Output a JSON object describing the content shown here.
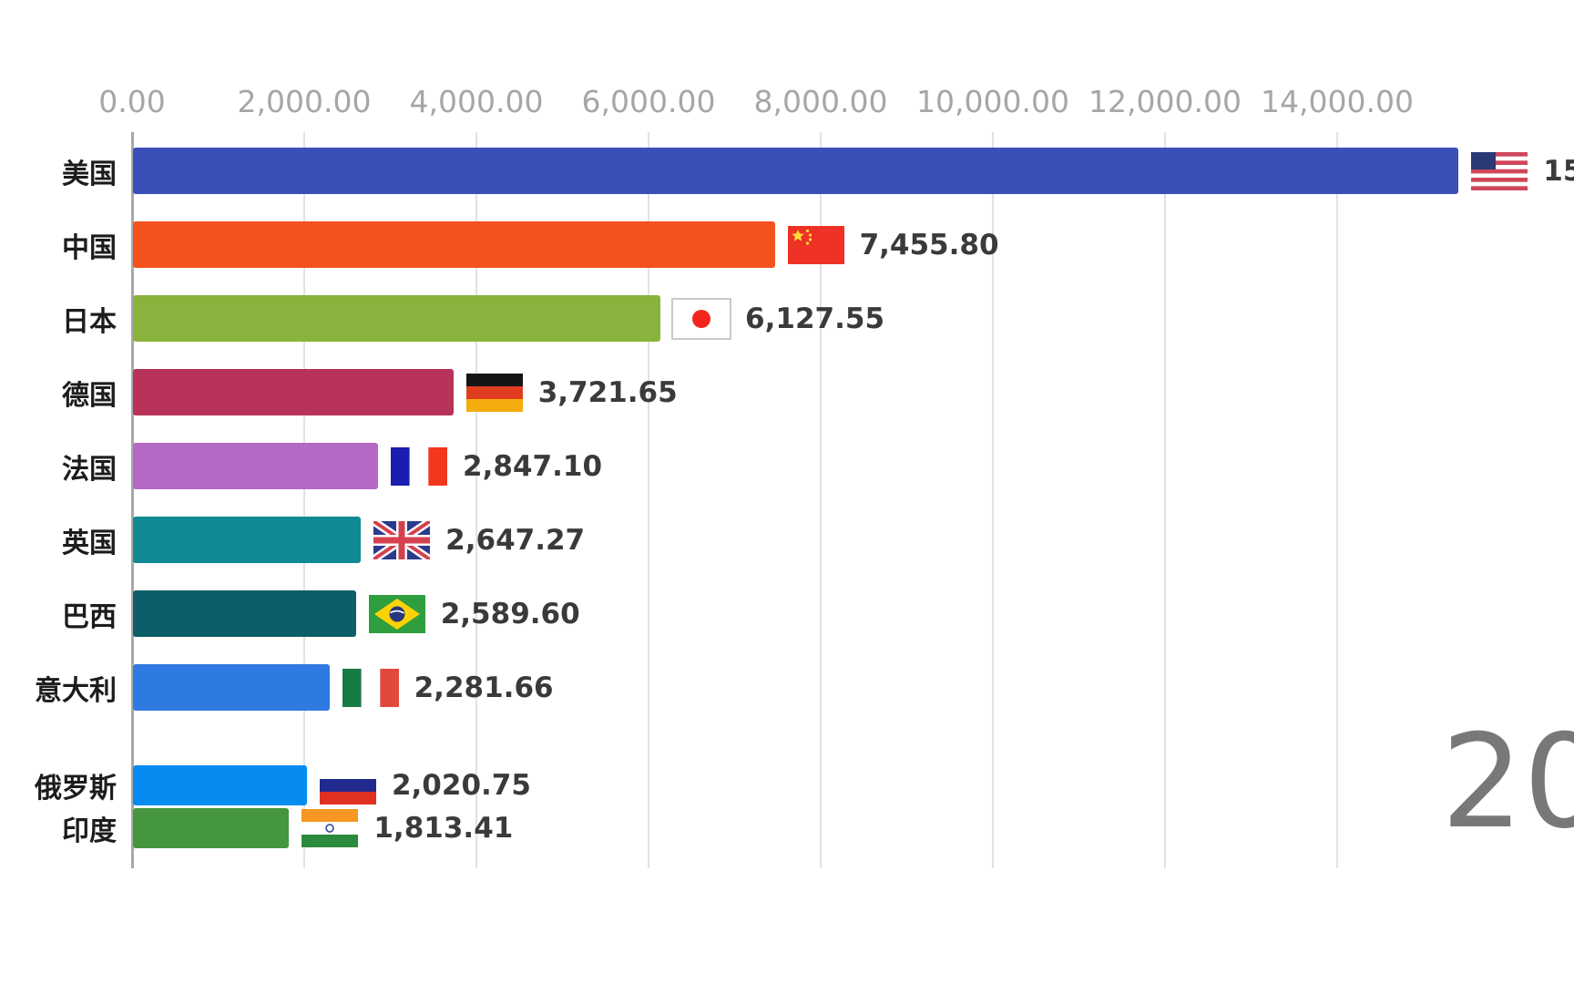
{
  "chart_data": {
    "type": "bar",
    "orientation": "horizontal",
    "title": "",
    "xlabel": "",
    "ylabel": "",
    "grid": "vertical-gridlines-on",
    "year_label": "20",
    "x_axis": {
      "tick_labels": [
        "0.00",
        "2,000.00",
        "4,000.00",
        "6,000.00",
        "8,000.00",
        "10,000.00",
        "12,000.00",
        "14,000.00"
      ],
      "tick_values": [
        0,
        2000,
        4000,
        6000,
        8000,
        10000,
        12000,
        14000
      ],
      "visible_max": 16700
    },
    "series": [
      {
        "label": "美国",
        "flag": "us",
        "value": 15400.0,
        "value_display": "15",
        "color": "#3a4fb8"
      },
      {
        "label": "中国",
        "flag": "cn",
        "value": 7455.8,
        "value_display": "7,455.80",
        "color": "#f4511c"
      },
      {
        "label": "日本",
        "flag": "jp",
        "value": 6127.55,
        "value_display": "6,127.55",
        "color": "#8ab33e"
      },
      {
        "label": "德国",
        "flag": "de",
        "value": 3721.65,
        "value_display": "3,721.65",
        "color": "#b83259"
      },
      {
        "label": "法国",
        "flag": "fr",
        "value": 2847.1,
        "value_display": "2,847.10",
        "color": "#b569c6"
      },
      {
        "label": "英国",
        "flag": "gb",
        "value": 2647.27,
        "value_display": "2,647.27",
        "color": "#0f8a92"
      },
      {
        "label": "巴西",
        "flag": "br",
        "value": 2589.6,
        "value_display": "2,589.60",
        "color": "#0c5f68"
      },
      {
        "label": "意大利",
        "flag": "it",
        "value": 2281.66,
        "value_display": "2,281.66",
        "color": "#2f7ae0"
      },
      {
        "label": "俄罗斯",
        "flag": "ru",
        "value": 2020.75,
        "value_display": "2,020.75",
        "color": "#068cf1"
      },
      {
        "label": "印度",
        "flag": "in",
        "value": 1813.41,
        "value_display": "1,813.41",
        "color": "#46953f"
      }
    ],
    "row_geometry": {
      "tops": [
        162,
        243,
        324,
        405,
        486,
        567,
        648,
        729,
        840,
        887
      ],
      "heights": [
        51,
        51,
        51,
        51,
        51,
        51,
        51,
        51,
        44,
        44
      ]
    },
    "notes": "US value label and year label are clipped by the right edge of the frame"
  }
}
